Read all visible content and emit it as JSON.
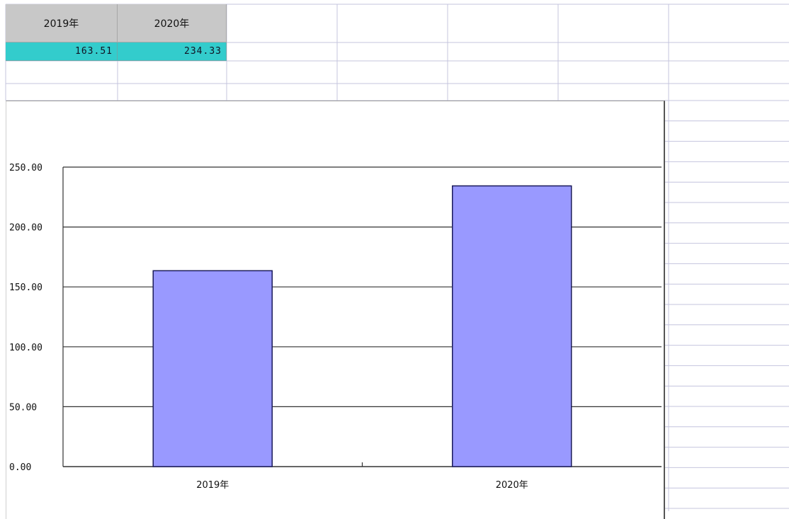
{
  "sheet": {
    "headers": [
      "2019年",
      "2020年"
    ],
    "values": [
      "163.51",
      "234.33"
    ]
  },
  "chart_data": {
    "type": "bar",
    "categories": [
      "2019年",
      "2020年"
    ],
    "values": [
      163.51,
      234.33
    ],
    "ylim": [
      0,
      250
    ],
    "yticks": [
      "0.00",
      "50.00",
      "100.00",
      "150.00",
      "200.00",
      "250.00"
    ],
    "grid": true,
    "bar_color": "#9999ff",
    "bar_edge_color": "#1a1a5a"
  }
}
